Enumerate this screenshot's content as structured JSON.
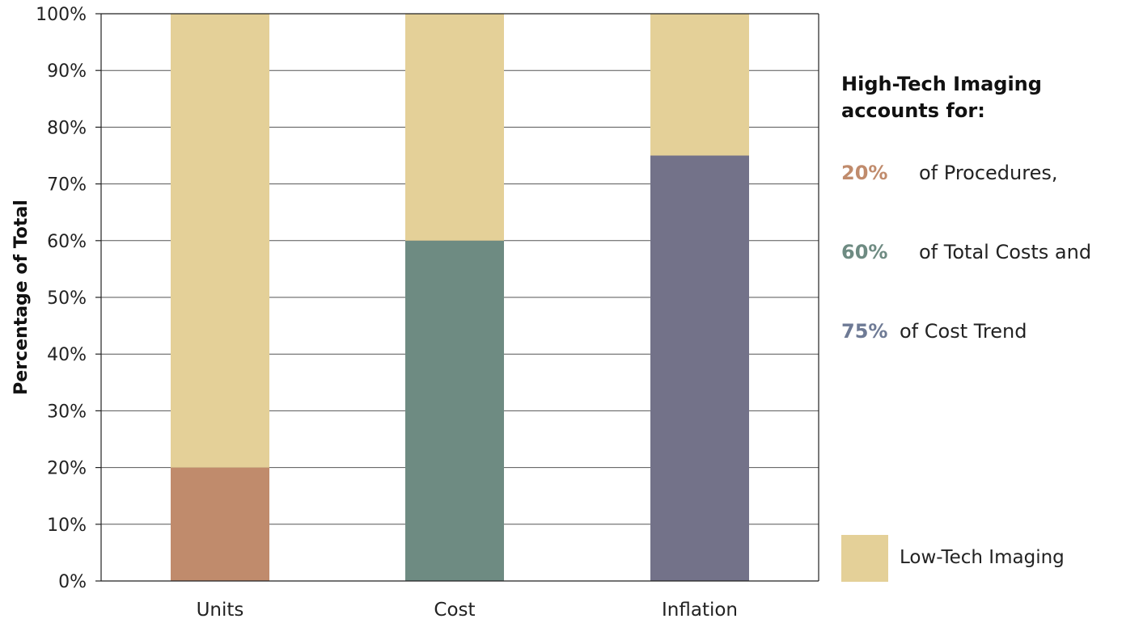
{
  "chart_data": {
    "type": "bar",
    "stacked": true,
    "categories": [
      "Units",
      "Cost",
      "Inflation"
    ],
    "series": [
      {
        "name": "High-Tech Imaging",
        "values": [
          20,
          60,
          75
        ],
        "colors": [
          "#c08b6c",
          "#6e8b82",
          "#737289"
        ]
      },
      {
        "name": "Low-Tech Imaging",
        "values": [
          80,
          40,
          25
        ],
        "color": "#e4d098"
      }
    ],
    "ylabel": "Percentage of Total",
    "ylim": [
      0,
      100
    ],
    "yticks": [
      0,
      10,
      20,
      30,
      40,
      50,
      60,
      70,
      80,
      90,
      100
    ],
    "ytick_labels": [
      "0%",
      "10%",
      "20%",
      "30%",
      "40%",
      "50%",
      "60%",
      "70%",
      "80%",
      "90%",
      "100%"
    ],
    "grid": true,
    "legend_position": "bottom-right"
  },
  "annotation": {
    "heading_line1": "High-Tech Imaging",
    "heading_line2": "accounts for:",
    "rows": [
      {
        "pct": "20%",
        "text": "of Procedures,",
        "color": "#c08b6c"
      },
      {
        "pct": "60%",
        "text": "of Total Costs and",
        "color": "#6e8b82"
      },
      {
        "pct": "75%",
        "text": "of Cost Trend",
        "color": "#6e7a95"
      }
    ]
  },
  "legend": {
    "label": "Low-Tech Imaging",
    "color": "#e4d098"
  }
}
